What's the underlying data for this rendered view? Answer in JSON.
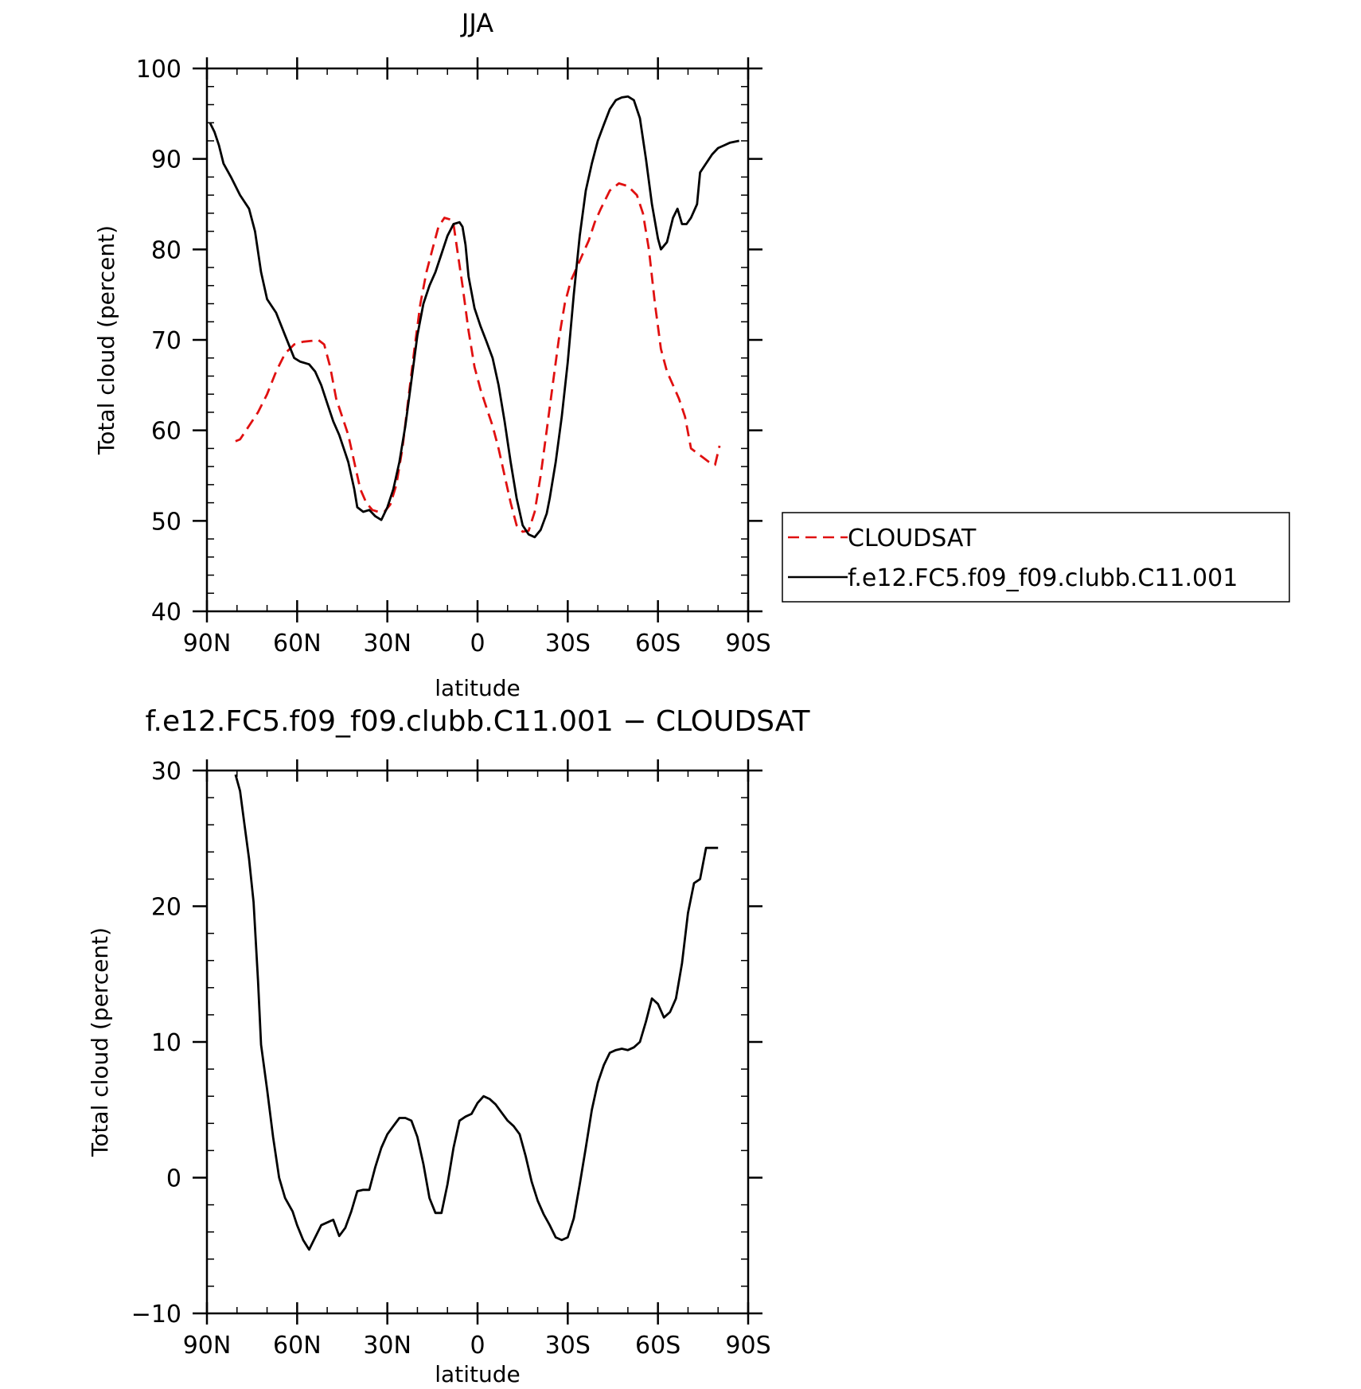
{
  "chart_data": [
    {
      "type": "line",
      "title": "JJA",
      "xlabel": "latitude",
      "ylabel": "Total cloud (percent)",
      "xlim": [
        90,
        -90
      ],
      "ylim": [
        40,
        100
      ],
      "xticks": [
        {
          "value": 90,
          "label": "90N"
        },
        {
          "value": 60,
          "label": "60N"
        },
        {
          "value": 30,
          "label": "30N"
        },
        {
          "value": 0,
          "label": "0"
        },
        {
          "value": -30,
          "label": "30S"
        },
        {
          "value": -60,
          "label": "60S"
        },
        {
          "value": -90,
          "label": "90S"
        }
      ],
      "yticks": [
        {
          "value": 100,
          "label": "100"
        },
        {
          "value": 90,
          "label": "90"
        },
        {
          "value": 80,
          "label": "80"
        },
        {
          "value": 70,
          "label": "70"
        },
        {
          "value": 60,
          "label": "60"
        },
        {
          "value": 50,
          "label": "50"
        },
        {
          "value": 40,
          "label": "40"
        }
      ],
      "legend": "right, outside plot",
      "series": [
        {
          "name": "CLOUDSAT",
          "color": "#e01010",
          "style": "dashed",
          "x": [
            80.5,
            79,
            76,
            73,
            70,
            67,
            64,
            61,
            58,
            55,
            53,
            51,
            49,
            47,
            45,
            43,
            41,
            39,
            37,
            35,
            33,
            31,
            29,
            27,
            25,
            23,
            21,
            19,
            17,
            15,
            13,
            11,
            9,
            8,
            7,
            5,
            3,
            1,
            -1,
            -3,
            -5,
            -7,
            -9,
            -11,
            -13,
            -15,
            -17,
            -19,
            -21,
            -23,
            -25,
            -27,
            -29,
            -31,
            -33,
            -35,
            -37,
            -39,
            -41,
            -44,
            -47,
            -50,
            -53,
            -55,
            -57,
            -59,
            -61,
            -63,
            -65,
            -67,
            -69,
            -71,
            -73,
            -75,
            -77,
            -79,
            -80.5
          ],
          "y": [
            58.8,
            59.0,
            60.5,
            62.0,
            64.0,
            66.5,
            68.5,
            69.5,
            69.8,
            69.9,
            70.0,
            69.5,
            67.0,
            63.5,
            61.5,
            59.5,
            56.5,
            53.5,
            52.0,
            51.2,
            51.0,
            51.0,
            51.8,
            54.0,
            58.0,
            63.5,
            69.0,
            74.0,
            77.5,
            80.0,
            82.5,
            83.5,
            83.3,
            82.8,
            80.5,
            76.0,
            71.0,
            67.0,
            64.5,
            62.5,
            60.5,
            58.0,
            55.0,
            52.0,
            49.5,
            48.8,
            48.9,
            51.0,
            55.0,
            60.0,
            65.0,
            70.0,
            74.0,
            76.5,
            78.0,
            79.5,
            81.0,
            83.0,
            84.5,
            86.5,
            87.3,
            87.0,
            86.0,
            84.0,
            80.0,
            74.0,
            69.0,
            66.5,
            65.0,
            63.5,
            61.5,
            58.0,
            57.5,
            57.0,
            56.5,
            56.2,
            58.3
          ]
        },
        {
          "name": "f.e12.FC5.f09_f09.clubb.C11.001",
          "color": "#000000",
          "style": "solid",
          "x": [
            89,
            87.5,
            86,
            84.5,
            82,
            79,
            76,
            74,
            72,
            70,
            67,
            64,
            61,
            59,
            56,
            54,
            52,
            50,
            48,
            46,
            44,
            43,
            41,
            40,
            38,
            36,
            34,
            32,
            30,
            28,
            26,
            24,
            22,
            20,
            18,
            16,
            14,
            12,
            10,
            8,
            6,
            5,
            4,
            3,
            1,
            -1,
            -3,
            -5,
            -7,
            -9,
            -11,
            -13,
            -15,
            -17,
            -19,
            -21,
            -23,
            -24,
            -26,
            -28,
            -30,
            -32,
            -34,
            -36,
            -38,
            -40,
            -42,
            -44,
            -46,
            -48,
            -50,
            -52,
            -54,
            -56,
            -58,
            -60,
            -61,
            -63,
            -65,
            -66.5,
            -68,
            -69.5,
            -71,
            -73,
            -74,
            -76,
            -78,
            -80,
            -82,
            -84,
            -87
          ],
          "y": [
            94.0,
            93.0,
            91.5,
            89.5,
            88.0,
            86.0,
            84.5,
            82.0,
            77.5,
            74.5,
            73.0,
            70.5,
            68.0,
            67.6,
            67.3,
            66.5,
            65.0,
            63.0,
            61.0,
            59.5,
            57.5,
            56.5,
            53.5,
            51.5,
            51.0,
            51.2,
            50.5,
            50.1,
            51.5,
            53.5,
            56.5,
            60.5,
            65.5,
            70.5,
            74.0,
            76.0,
            77.5,
            79.5,
            81.5,
            82.8,
            83.0,
            82.5,
            80.5,
            77.0,
            73.5,
            71.5,
            69.8,
            68.0,
            65.0,
            61.0,
            56.5,
            52.5,
            49.5,
            48.5,
            48.2,
            49.0,
            50.8,
            52.5,
            56.5,
            61.5,
            67.5,
            75.0,
            81.5,
            86.5,
            89.5,
            92.0,
            93.8,
            95.5,
            96.5,
            96.8,
            96.9,
            96.5,
            94.5,
            90.0,
            85.0,
            81.2,
            80.0,
            80.8,
            83.5,
            84.5,
            82.8,
            82.8,
            83.5,
            85.0,
            88.5,
            89.5,
            90.5,
            91.2,
            91.5,
            91.8,
            92.0
          ]
        }
      ]
    },
    {
      "type": "line",
      "title": "f.e12.FC5.f09_f09.clubb.C11.001 − CLOUDSAT",
      "xlabel": "latitude",
      "ylabel": "Total cloud (percent)",
      "xlim": [
        90,
        -90
      ],
      "ylim": [
        -10,
        30
      ],
      "xticks": [
        {
          "value": 90,
          "label": "90N"
        },
        {
          "value": 60,
          "label": "60N"
        },
        {
          "value": 30,
          "label": "30N"
        },
        {
          "value": 0,
          "label": "0"
        },
        {
          "value": -30,
          "label": "30S"
        },
        {
          "value": -60,
          "label": "60S"
        },
        {
          "value": -90,
          "label": "90S"
        }
      ],
      "yticks": [
        {
          "value": 30,
          "label": "30"
        },
        {
          "value": 20,
          "label": "20"
        },
        {
          "value": 10,
          "label": "10"
        },
        {
          "value": 0,
          "label": "0"
        },
        {
          "value": -10,
          "label": "−10"
        }
      ],
      "series": [
        {
          "name": "",
          "color": "#000000",
          "style": "solid",
          "x": [
            80.5,
            79,
            77.5,
            76,
            74.5,
            73,
            72,
            70,
            68,
            66,
            64,
            61.5,
            60,
            58,
            56,
            54,
            52,
            50,
            48,
            46,
            44,
            42,
            40,
            38,
            36,
            34,
            32,
            30,
            28,
            26,
            24,
            22,
            20,
            18,
            16,
            14,
            12,
            10,
            8,
            6,
            4,
            2,
            0,
            -2,
            -4,
            -6,
            -8,
            -10,
            -12,
            -14,
            -16,
            -18,
            -20,
            -22,
            -24,
            -26,
            -28,
            -30,
            -32,
            -34,
            -36,
            -38,
            -40,
            -42,
            -44,
            -46,
            -48,
            -50,
            -52,
            -54,
            -56,
            -58,
            -60,
            -62,
            -64,
            -66,
            -68,
            -70,
            -72,
            -74,
            -76,
            -78,
            -80
          ],
          "y": [
            29.7,
            28.5,
            26.0,
            23.5,
            20.3,
            14.5,
            9.8,
            6.5,
            3.0,
            0.0,
            -1.5,
            -2.5,
            -3.5,
            -4.6,
            -5.3,
            -4.4,
            -3.5,
            -3.3,
            -3.1,
            -4.3,
            -3.7,
            -2.5,
            -1.0,
            -0.9,
            -0.9,
            0.8,
            2.2,
            3.2,
            3.8,
            4.4,
            4.4,
            4.2,
            3.0,
            1.0,
            -1.5,
            -2.6,
            -2.6,
            -0.5,
            2.2,
            4.2,
            4.5,
            4.7,
            5.5,
            6.0,
            5.8,
            5.4,
            4.8,
            4.2,
            3.8,
            3.2,
            1.6,
            -0.3,
            -1.7,
            -2.7,
            -3.5,
            -4.4,
            -4.6,
            -4.4,
            -3.0,
            -0.5,
            2.2,
            5.0,
            7.0,
            8.3,
            9.2,
            9.4,
            9.5,
            9.4,
            9.6,
            10.0,
            11.5,
            13.2,
            12.8,
            11.8,
            12.2,
            13.2,
            15.8,
            19.5,
            21.7,
            22.0,
            24.3,
            24.3,
            24.3
          ]
        }
      ]
    }
  ]
}
